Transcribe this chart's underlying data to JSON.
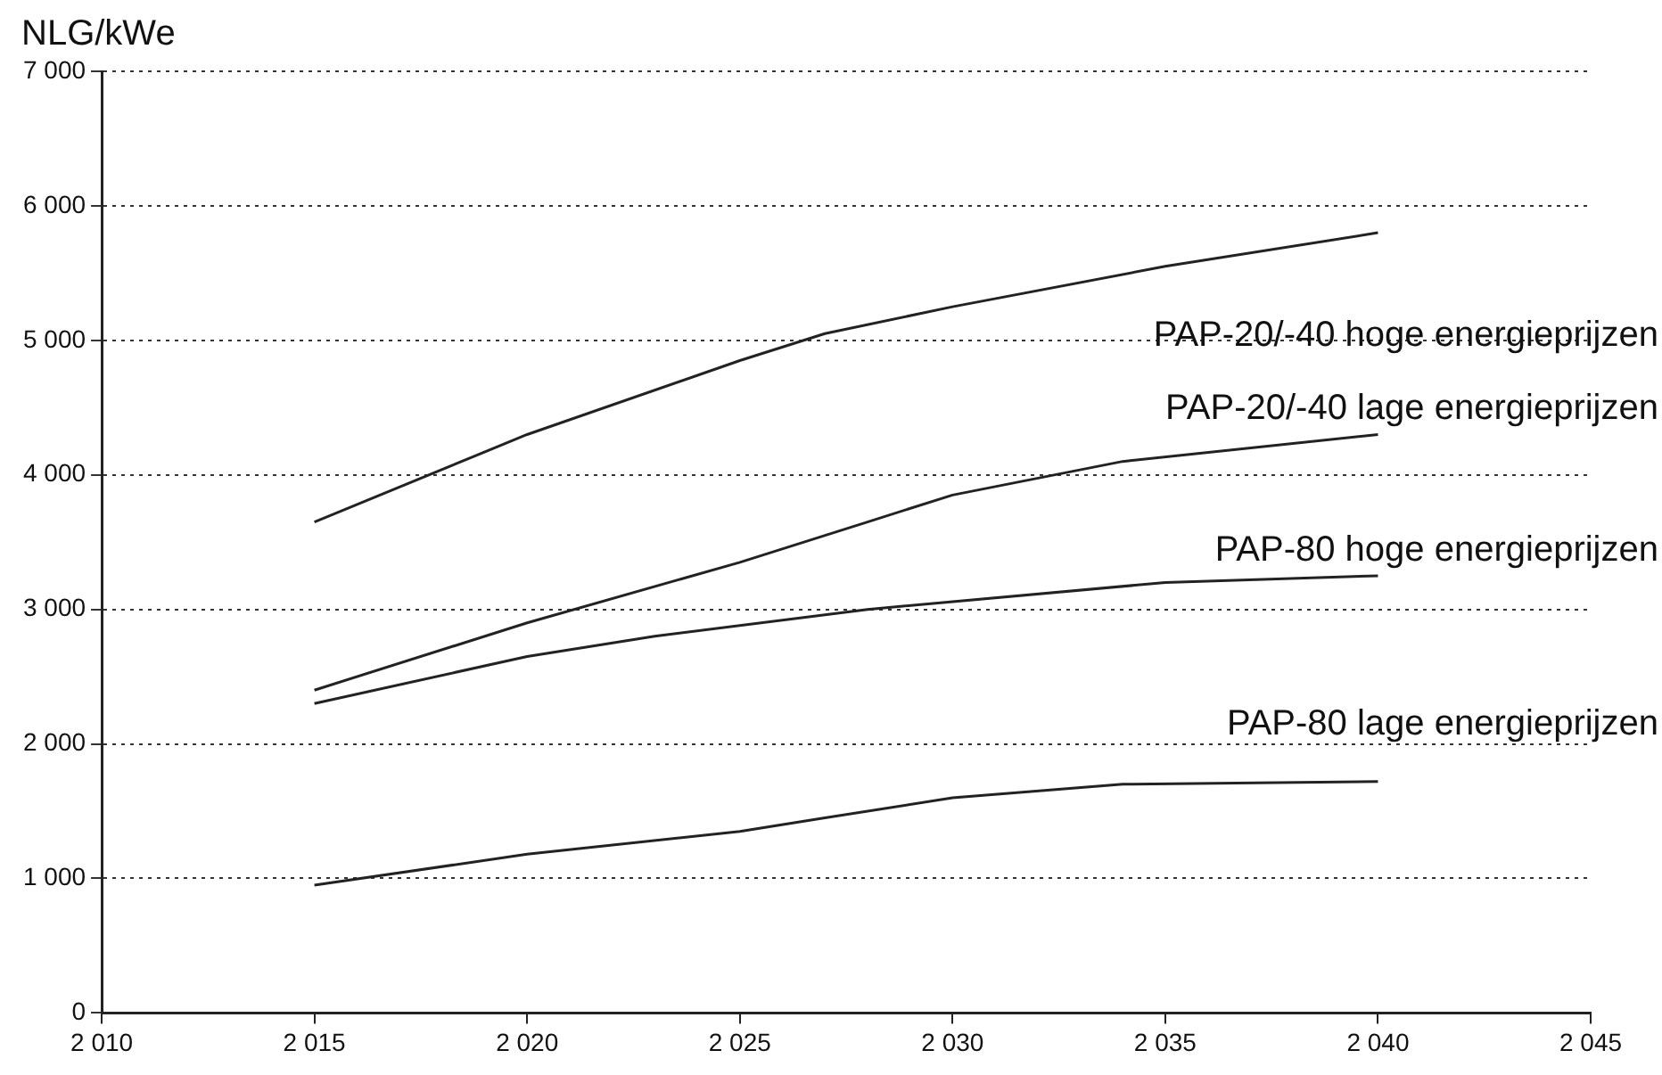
{
  "chart_data": {
    "type": "line",
    "ylabel": "NLG/kWe",
    "xlim": [
      2010,
      2045
    ],
    "xticks": [
      {
        "value": 2010,
        "label": "2 010"
      },
      {
        "value": 2015,
        "label": "2 015"
      },
      {
        "value": 2020,
        "label": "2 020"
      },
      {
        "value": 2025,
        "label": "2 025"
      },
      {
        "value": 2030,
        "label": "2 030"
      },
      {
        "value": 2035,
        "label": "2 035"
      },
      {
        "value": 2040,
        "label": "2 040"
      },
      {
        "value": 2045,
        "label": "2 045"
      }
    ],
    "ylim": [
      0,
      7000
    ],
    "yticks": [
      0,
      {
        "value": 1000,
        "label": "1 000"
      },
      {
        "value": 2000,
        "label": "2 000"
      },
      {
        "value": 3000,
        "label": "3 000"
      },
      {
        "value": 4000,
        "label": "4 000"
      },
      {
        "value": 5000,
        "label": "5 000"
      },
      {
        "value": 6000,
        "label": "6 000"
      },
      {
        "value": 7000,
        "label": "7 000"
      }
    ],
    "grid": "y",
    "legend": false,
    "marker": "none",
    "line_style": "solid",
    "series": [
      {
        "name": "PAP-20/-40 hoge energieprijzen",
        "color": "#222222",
        "x": [
          2015,
          2020,
          2025,
          2027,
          2030,
          2035,
          2040
        ],
        "values": [
          3650,
          4300,
          4850,
          5050,
          5250,
          5550,
          5800
        ]
      },
      {
        "name": "PAP-20/-40 lage energieprijzen",
        "color": "#222222",
        "x": [
          2015,
          2020,
          2025,
          2028,
          2030,
          2034,
          2040
        ],
        "values": [
          2400,
          2900,
          3350,
          3650,
          3850,
          4100,
          4300
        ]
      },
      {
        "name": "PAP-80 hoge energieprijzen",
        "color": "#222222",
        "x": [
          2015,
          2020,
          2023,
          2028,
          2035,
          2040
        ],
        "values": [
          2300,
          2650,
          2800,
          3000,
          3200,
          3250
        ]
      },
      {
        "name": "PAP-80 lage energieprijzen",
        "color": "#222222",
        "x": [
          2015,
          2020,
          2025,
          2027,
          2030,
          2034,
          2040
        ],
        "values": [
          950,
          1180,
          1350,
          1450,
          1600,
          1700,
          1720
        ]
      }
    ]
  }
}
